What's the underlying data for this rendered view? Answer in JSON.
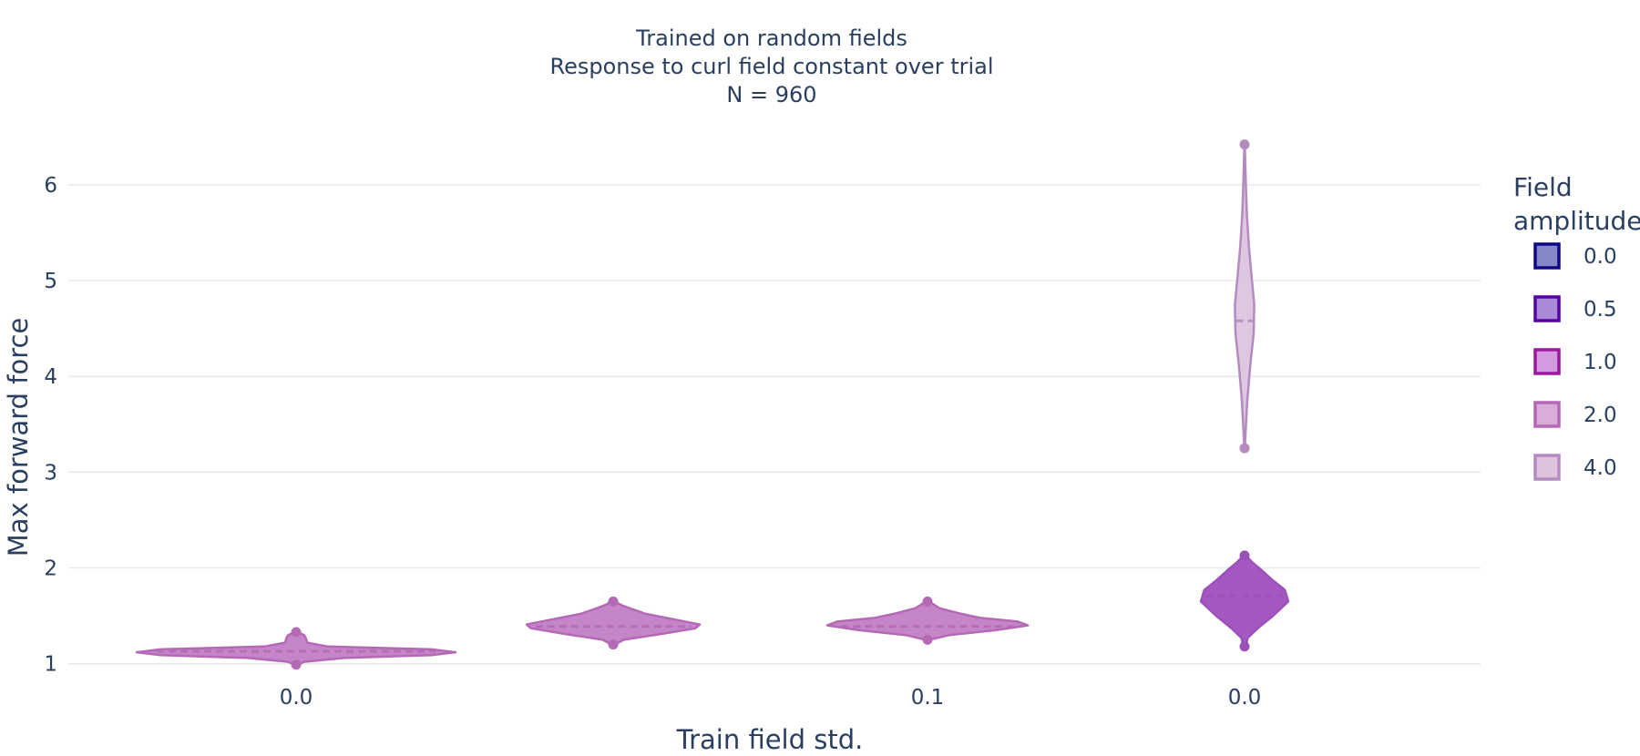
{
  "chart_data": {
    "type": "violin",
    "title_lines": [
      "Trained on random fields",
      "Response to curl field constant over trial",
      "N = 960"
    ],
    "xlabel": "Train field std.",
    "ylabel": "Max forward force",
    "ylim": [
      0.75,
      6.55
    ],
    "yticks": [
      1,
      2,
      3,
      4,
      5,
      6
    ],
    "categories": [
      "0.0",
      "",
      "0.1",
      "0.0"
    ],
    "grid": true,
    "legend": {
      "title_lines": [
        "Field",
        "amplitude"
      ],
      "placement": "right",
      "entries": [
        {
          "label": "0.0",
          "fill": "#8688c6",
          "stroke": "#0d0887"
        },
        {
          "label": "0.5",
          "fill": "#a98ad9",
          "stroke": "#5402a3"
        },
        {
          "label": "1.0",
          "fill": "#d49ae0",
          "stroke": "#9c179e"
        },
        {
          "label": "2.0",
          "fill": "#dbacda",
          "stroke": "#b469b5"
        },
        {
          "label": "4.0",
          "fill": "#dcc4de",
          "stroke": "#b48bbf"
        }
      ]
    },
    "violins": [
      {
        "category_index": 0,
        "group": "2.0",
        "fill": "#c17fc6",
        "stroke": "#b469b5",
        "min": 0.99,
        "max": 1.33,
        "median": 1.13,
        "profile": [
          [
            0.99,
            0.01
          ],
          [
            1.02,
            0.05
          ],
          [
            1.06,
            0.3
          ],
          [
            1.09,
            0.85
          ],
          [
            1.12,
            1.0
          ],
          [
            1.15,
            0.85
          ],
          [
            1.18,
            0.2
          ],
          [
            1.22,
            0.07
          ],
          [
            1.27,
            0.06
          ],
          [
            1.3,
            0.05
          ],
          [
            1.33,
            0.01
          ]
        ]
      },
      {
        "category_index": 1,
        "group": "2.0",
        "fill": "#c17fc6",
        "stroke": "#b469b5",
        "min": 1.2,
        "max": 1.65,
        "median": 1.39,
        "profile": [
          [
            1.2,
            0.02
          ],
          [
            1.25,
            0.12
          ],
          [
            1.31,
            0.55
          ],
          [
            1.37,
            0.95
          ],
          [
            1.41,
            1.0
          ],
          [
            1.46,
            0.72
          ],
          [
            1.52,
            0.38
          ],
          [
            1.57,
            0.22
          ],
          [
            1.61,
            0.1
          ],
          [
            1.65,
            0.02
          ]
        ]
      },
      {
        "category_index": 2,
        "group": "2.0",
        "fill": "#c17fc6",
        "stroke": "#b469b5",
        "min": 1.25,
        "max": 1.65,
        "median": 1.39,
        "profile": [
          [
            1.25,
            0.02
          ],
          [
            1.3,
            0.22
          ],
          [
            1.35,
            0.68
          ],
          [
            1.4,
            1.0
          ],
          [
            1.44,
            0.9
          ],
          [
            1.48,
            0.52
          ],
          [
            1.53,
            0.3
          ],
          [
            1.58,
            0.12
          ],
          [
            1.62,
            0.06
          ],
          [
            1.65,
            0.02
          ]
        ]
      },
      {
        "category_index": 3,
        "group": "0.5",
        "fill": "#a14fbf",
        "stroke": "#9a52b9",
        "min": 1.18,
        "max": 2.13,
        "median": 1.71,
        "profile": [
          [
            1.18,
            0.03
          ],
          [
            1.27,
            0.07
          ],
          [
            1.37,
            0.3
          ],
          [
            1.5,
            0.65
          ],
          [
            1.65,
            1.0
          ],
          [
            1.77,
            0.92
          ],
          [
            1.88,
            0.62
          ],
          [
            1.98,
            0.38
          ],
          [
            2.06,
            0.17
          ],
          [
            2.13,
            0.03
          ]
        ]
      },
      {
        "category_index": 3,
        "group": "4.0",
        "fill": "#dcc4de",
        "stroke": "#b48bbf",
        "min": 3.25,
        "max": 6.42,
        "median": 4.58,
        "profile": [
          [
            3.25,
            0.03
          ],
          [
            3.45,
            0.12
          ],
          [
            3.75,
            0.28
          ],
          [
            4.1,
            0.58
          ],
          [
            4.45,
            0.95
          ],
          [
            4.75,
            1.0
          ],
          [
            5.05,
            0.72
          ],
          [
            5.35,
            0.45
          ],
          [
            5.7,
            0.24
          ],
          [
            6.0,
            0.13
          ],
          [
            6.25,
            0.07
          ],
          [
            6.42,
            0.02
          ]
        ]
      }
    ]
  }
}
